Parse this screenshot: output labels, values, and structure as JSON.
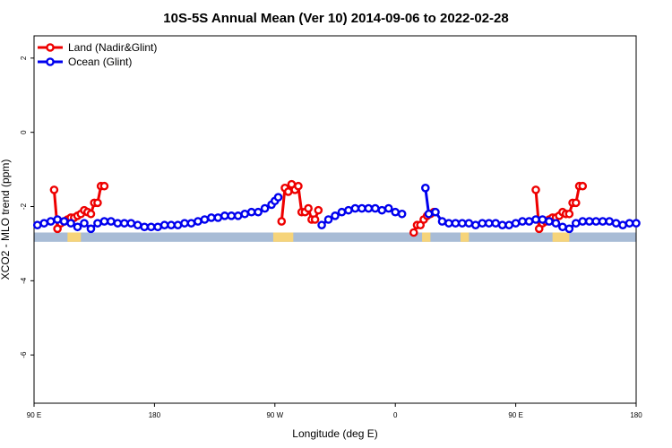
{
  "chart_data": {
    "type": "line",
    "title": "10S-5S Annual Mean (Ver 10)   2014-09-06 to 2022-02-28",
    "xlabel": "Longitude (deg E)",
    "ylabel": "XCO2 - MLO trend (ppm)",
    "xlim": [
      90,
      450
    ],
    "ylim": [
      -7.3,
      2.6
    ],
    "x_ticks": [
      {
        "value": 90,
        "label": "90 E"
      },
      {
        "value": 162,
        "label": "180"
      },
      {
        "value": 234,
        "label": "90 W"
      },
      {
        "value": 306,
        "label": "0"
      },
      {
        "value": 378,
        "label": "90 E"
      },
      {
        "value": 450,
        "label": "180"
      }
    ],
    "y_ticks": [
      {
        "value": 2,
        "label": "2"
      },
      {
        "value": 0,
        "label": "0"
      },
      {
        "value": -2,
        "label": "-2"
      },
      {
        "value": -4,
        "label": "-4"
      },
      {
        "value": -6,
        "label": "-6"
      }
    ],
    "legend": {
      "position": "top-left"
    },
    "map_strip": {
      "y_range": [
        -2.95,
        -2.7
      ],
      "ocean_color": "#a8bcd6",
      "land_color": "#f6d47a",
      "land_x": [
        [
          233,
          245
        ],
        [
          327,
          322
        ],
        [
          400,
          410
        ],
        [
          345,
          350
        ],
        [
          110,
          118
        ]
      ]
    },
    "series": [
      {
        "name": "Land (Nadir&Glint)",
        "color": "#ee0000",
        "segments": [
          {
            "x": [
              102,
              104,
              106,
              108,
              110,
              112,
              114,
              116,
              118,
              120,
              122,
              124,
              126,
              128,
              130,
              132
            ],
            "y": [
              -1.55,
              -2.6,
              -2.45,
              -2.4,
              -2.35,
              -2.3,
              -2.3,
              -2.25,
              -2.2,
              -2.1,
              -2.15,
              -2.2,
              -1.9,
              -1.9,
              -1.45,
              -1.45
            ]
          },
          {
            "x": [
              238,
              240,
              242,
              244,
              246,
              248,
              250,
              252,
              254,
              256,
              258,
              260
            ],
            "y": [
              -2.4,
              -1.5,
              -1.6,
              -1.4,
              -1.55,
              -1.45,
              -2.15,
              -2.15,
              -2.05,
              -2.35,
              -2.35,
              -2.1
            ]
          },
          {
            "x": [
              317,
              319,
              321,
              323,
              325,
              327,
              329
            ],
            "y": [
              -2.7,
              -2.5,
              -2.5,
              -2.35,
              -2.25,
              -2.2,
              -2.15
            ]
          },
          {
            "x": [
              390,
              392,
              394,
              396,
              398,
              400,
              402,
              404,
              406,
              408,
              410,
              412,
              414,
              416,
              418
            ],
            "y": [
              -1.55,
              -2.6,
              -2.45,
              -2.4,
              -2.35,
              -2.3,
              -2.3,
              -2.25,
              -2.15,
              -2.2,
              -2.2,
              -1.9,
              -1.9,
              -1.45,
              -1.45
            ]
          }
        ]
      },
      {
        "name": "Ocean (Glint)",
        "color": "#0000ee",
        "segments": [
          {
            "x": [
              92,
              96,
              100,
              104,
              108,
              112,
              116,
              120,
              124,
              128,
              132,
              136,
              140,
              144,
              148,
              152,
              156,
              160,
              164,
              168,
              172,
              176,
              180,
              184,
              188,
              192,
              196,
              200,
              204,
              208,
              212,
              216,
              220,
              224,
              228,
              232,
              234,
              236
            ],
            "y": [
              -2.5,
              -2.45,
              -2.4,
              -2.35,
              -2.4,
              -2.45,
              -2.55,
              -2.45,
              -2.6,
              -2.45,
              -2.4,
              -2.4,
              -2.45,
              -2.45,
              -2.45,
              -2.5,
              -2.55,
              -2.55,
              -2.55,
              -2.5,
              -2.5,
              -2.5,
              -2.45,
              -2.45,
              -2.4,
              -2.35,
              -2.3,
              -2.3,
              -2.25,
              -2.25,
              -2.25,
              -2.2,
              -2.15,
              -2.15,
              -2.05,
              -1.95,
              -1.85,
              -1.75
            ]
          },
          {
            "x": [
              262,
              266,
              270,
              274,
              278,
              282,
              286,
              290,
              294,
              298,
              302,
              306,
              310
            ],
            "y": [
              -2.5,
              -2.35,
              -2.25,
              -2.15,
              -2.1,
              -2.05,
              -2.05,
              -2.05,
              -2.05,
              -2.1,
              -2.05,
              -2.15,
              -2.2
            ]
          },
          {
            "x": [
              324,
              326,
              330,
              334,
              338,
              342,
              346,
              350,
              354,
              358,
              362,
              366,
              370,
              374,
              378,
              382,
              386,
              390,
              394,
              398,
              402,
              406,
              410,
              414,
              418,
              422,
              426,
              430,
              434,
              438,
              442,
              446,
              450
            ],
            "y": [
              -1.5,
              -2.2,
              -2.15,
              -2.4,
              -2.45,
              -2.45,
              -2.45,
              -2.45,
              -2.5,
              -2.45,
              -2.45,
              -2.45,
              -2.5,
              -2.5,
              -2.45,
              -2.4,
              -2.4,
              -2.35,
              -2.35,
              -2.4,
              -2.45,
              -2.55,
              -2.6,
              -2.45,
              -2.4,
              -2.4,
              -2.4,
              -2.4,
              -2.4,
              -2.45,
              -2.5,
              -2.45,
              -2.45
            ]
          }
        ]
      }
    ]
  }
}
